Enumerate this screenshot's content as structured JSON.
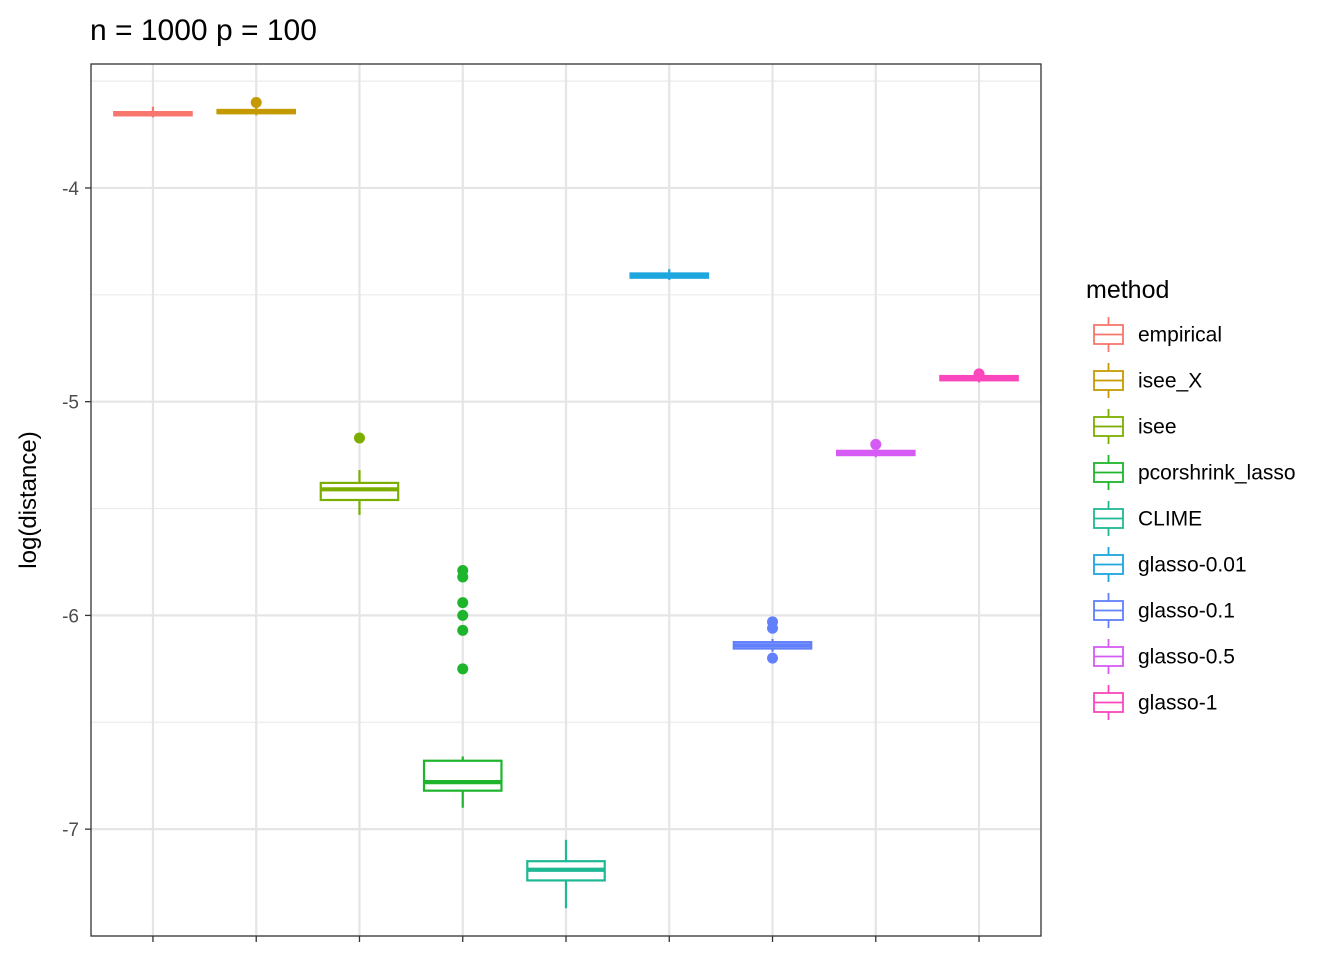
{
  "chart_data": {
    "type": "box",
    "title": "n = 1000 p = 100",
    "xlabel": "",
    "ylabel": "log(distance)",
    "ylim": [
      -7.5,
      -3.42
    ],
    "y_ticks": [
      -4,
      -5,
      -6,
      -7
    ],
    "y_tick_labels": [
      "-4",
      "-5",
      "-6",
      "-7"
    ],
    "grid": true,
    "x_ticks_shown": false,
    "legend": {
      "title": "method",
      "position": "right"
    },
    "series": [
      {
        "name": "empirical",
        "color": "#F8766D",
        "q1": -3.66,
        "median": -3.655,
        "q3": -3.645,
        "whisker_low": -3.67,
        "whisker_high": -3.62,
        "outliers": []
      },
      {
        "name": "isee_X",
        "color": "#C49A00",
        "q1": -3.65,
        "median": -3.645,
        "q3": -3.635,
        "whisker_low": -3.66,
        "whisker_high": -3.62,
        "outliers": [
          -3.6
        ]
      },
      {
        "name": "isee",
        "color": "#7CAE00",
        "q1": -5.46,
        "median": -5.41,
        "q3": -5.38,
        "whisker_low": -5.53,
        "whisker_high": -5.32,
        "outliers": [
          -5.17
        ]
      },
      {
        "name": "pcorshrink_lasso",
        "color": "#1EB52C",
        "q1": -6.82,
        "median": -6.78,
        "q3": -6.68,
        "whisker_low": -6.9,
        "whisker_high": -6.66,
        "outliers": [
          -5.79,
          -5.82,
          -5.94,
          -6.0,
          -6.07,
          -6.25
        ]
      },
      {
        "name": "CLIME",
        "color": "#1EB894",
        "q1": -7.24,
        "median": -7.19,
        "q3": -7.15,
        "whisker_low": -7.37,
        "whisker_high": -7.05,
        "outliers": []
      },
      {
        "name": "glasso-0.01",
        "color": "#1EA6DF",
        "q1": -4.42,
        "median": -4.41,
        "q3": -4.4,
        "whisker_low": -4.43,
        "whisker_high": -4.38,
        "outliers": []
      },
      {
        "name": "glasso-0.1",
        "color": "#6180FA",
        "q1": -6.155,
        "median": -6.14,
        "q3": -6.125,
        "whisker_low": -6.17,
        "whisker_high": -6.11,
        "outliers": [
          -6.03,
          -6.06,
          -6.2
        ]
      },
      {
        "name": "glasso-0.5",
        "color": "#D65BF5",
        "q1": -5.25,
        "median": -5.24,
        "q3": -5.23,
        "whisker_low": -5.26,
        "whisker_high": -5.22,
        "outliers": [
          -5.2
        ]
      },
      {
        "name": "glasso-1",
        "color": "#FA47BE",
        "q1": -4.9,
        "median": -4.89,
        "q3": -4.88,
        "whisker_low": -4.91,
        "whisker_high": -4.87,
        "outliers": [
          -4.87
        ]
      }
    ]
  }
}
